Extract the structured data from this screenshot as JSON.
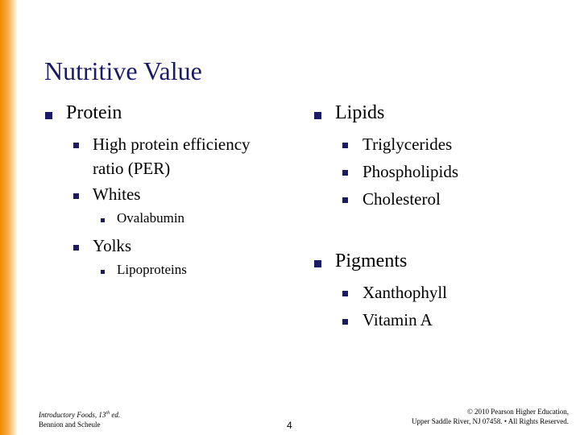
{
  "slide": {
    "title": "Nutritive Value",
    "left_column": {
      "heading": "Protein",
      "items": [
        {
          "label_line1": "High protein efficiency",
          "label_line2": "ratio (PER)"
        },
        {
          "label": "Whites",
          "subitems": [
            "Ovalabumin"
          ]
        },
        {
          "label": "Yolks",
          "subitems": [
            "Lipoproteins"
          ]
        }
      ]
    },
    "right_column": {
      "sections": [
        {
          "heading": "Lipids",
          "items": [
            "Triglycerides",
            "Phospholipids",
            "Cholesterol"
          ]
        },
        {
          "heading": "Pigments",
          "items": [
            "Xanthophyll",
            "Vitamin A"
          ]
        }
      ]
    },
    "footer": {
      "book_title": "Introductory Foods, 13",
      "book_edition_sup": "th",
      "book_edition_suffix": " ed.",
      "authors": "Bennion and Scheule",
      "page_number": "4",
      "copyright_line1": "© 2010 Pearson Higher Education,",
      "copyright_line2": "Upper Saddle River, NJ 07458. • All Rights Reserved."
    },
    "colors": {
      "accent": "#f28a00",
      "title": "#1a1a66",
      "bullet": "#1a1a66"
    }
  }
}
